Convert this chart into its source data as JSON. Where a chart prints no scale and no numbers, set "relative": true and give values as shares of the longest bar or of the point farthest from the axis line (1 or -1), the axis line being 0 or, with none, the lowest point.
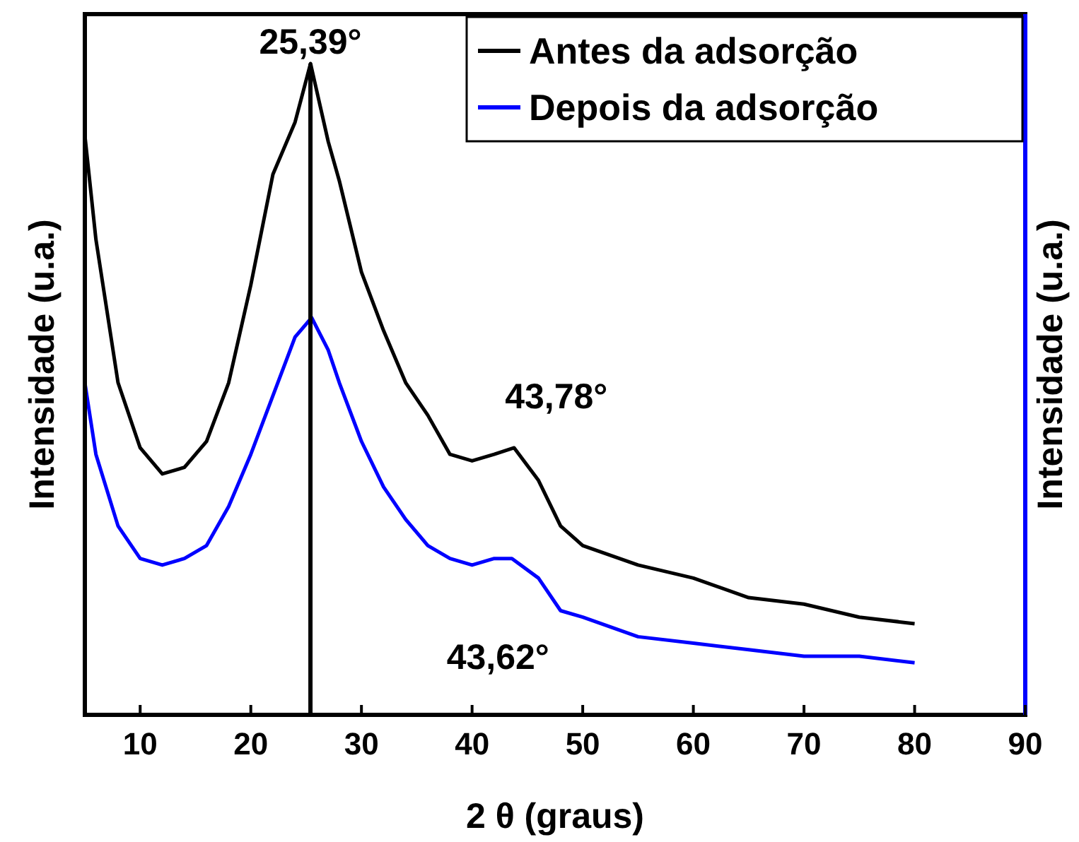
{
  "chart_data": {
    "type": "line",
    "relative": true,
    "xlabel": "2 θ (graus)",
    "ylabel": "Intensidade (u.a.)",
    "y2label": "Intensidade (u.a.)",
    "xlim": [
      5,
      90
    ],
    "xticks": [
      10,
      20,
      30,
      40,
      50,
      60,
      70,
      80,
      90
    ],
    "legend": "top right",
    "grid": false,
    "marker": "none",
    "line_style": "solid",
    "series": [
      {
        "name": "Antes da adsorção",
        "color": "#000000",
        "x": [
          5,
          6,
          8,
          10,
          12,
          14,
          16,
          18,
          20,
          22,
          24,
          25.4,
          27,
          28,
          30,
          32,
          34,
          36,
          38,
          40,
          42,
          43.8,
          46,
          48,
          50,
          55,
          60,
          65,
          70,
          75,
          80
        ],
        "values": [
          0.89,
          0.73,
          0.51,
          0.41,
          0.37,
          0.38,
          0.42,
          0.51,
          0.66,
          0.83,
          0.91,
          1,
          0.88,
          0.82,
          0.68,
          0.59,
          0.51,
          0.46,
          0.4,
          0.39,
          0.4,
          0.41,
          0.36,
          0.29,
          0.26,
          0.23,
          0.21,
          0.18,
          0.17,
          0.15,
          0.14
        ]
      },
      {
        "name": "Depois da adsorção",
        "color": "#0000ff",
        "x": [
          5,
          6,
          8,
          10,
          12,
          14,
          16,
          18,
          20,
          22,
          24,
          25.5,
          27,
          28,
          30,
          32,
          34,
          36,
          38,
          40,
          42,
          43.6,
          46,
          48,
          50,
          55,
          60,
          65,
          70,
          75,
          80
        ],
        "values": [
          0.51,
          0.4,
          0.29,
          0.24,
          0.23,
          0.24,
          0.26,
          0.32,
          0.4,
          0.49,
          0.58,
          0.61,
          0.56,
          0.51,
          0.42,
          0.35,
          0.3,
          0.26,
          0.24,
          0.23,
          0.24,
          0.24,
          0.21,
          0.16,
          0.15,
          0.12,
          0.11,
          0.1,
          0.09,
          0.09,
          0.08
        ]
      }
    ],
    "ref_lines": [
      {
        "axis": "x",
        "value": 25.39,
        "label": "25,39°",
        "color": "#000000"
      }
    ],
    "annotations": [
      {
        "text": "43,78°",
        "x": 43.78,
        "y": 0.41
      },
      {
        "text": "43,62°",
        "x": 43.62,
        "y": 0.24
      }
    ]
  }
}
